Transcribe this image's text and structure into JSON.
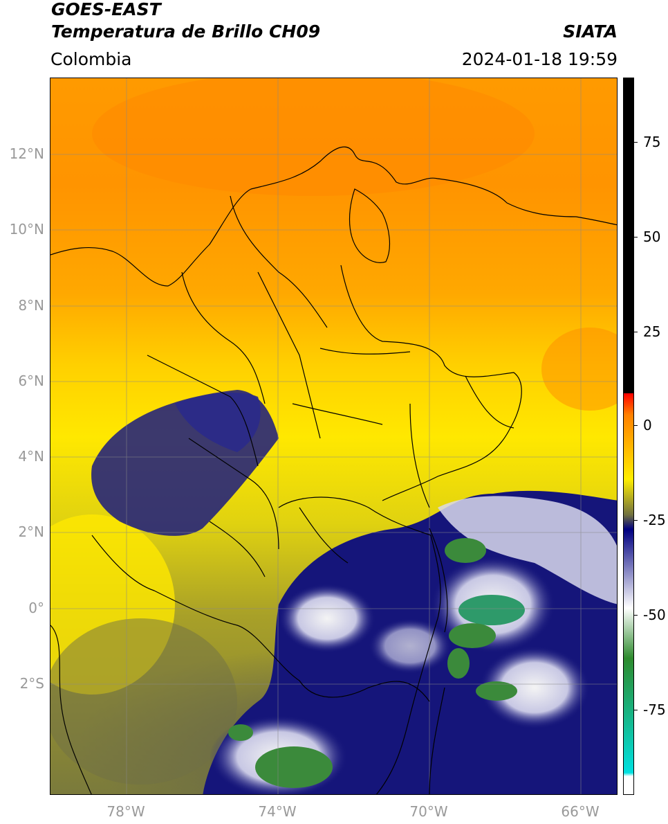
{
  "header": {
    "title_line1": "GOES-EAST",
    "title_line2": "Temperatura de Brillo CH09",
    "region": "Colombia",
    "agency": "SIATA",
    "datetime": "2024-01-18 19:59"
  },
  "map": {
    "lat_ticks": [
      "12°N",
      "10°N",
      "8°N",
      "6°N",
      "4°N",
      "2°N",
      "0°",
      "2°S"
    ],
    "lon_ticks": [
      "78°W",
      "74°W",
      "70°W",
      "66°W"
    ],
    "colors": {
      "warm": "#ffa000",
      "yellow": "#ffe600",
      "olive": "#8f8f2a",
      "gray": "#5e5e4e",
      "navy": "#15157a",
      "white": "#f2f2f2",
      "green": "#3b8a3b"
    }
  },
  "colorbar": {
    "labels": [
      "75",
      "50",
      "25",
      "0",
      "-25",
      "-50",
      "-75"
    ],
    "colors": [
      "#000000",
      "#ff0000",
      "#ff8000",
      "#ffee00",
      "#707040",
      "#000080",
      "#ffffff",
      "#2e8b2e",
      "#00e0e0"
    ]
  }
}
